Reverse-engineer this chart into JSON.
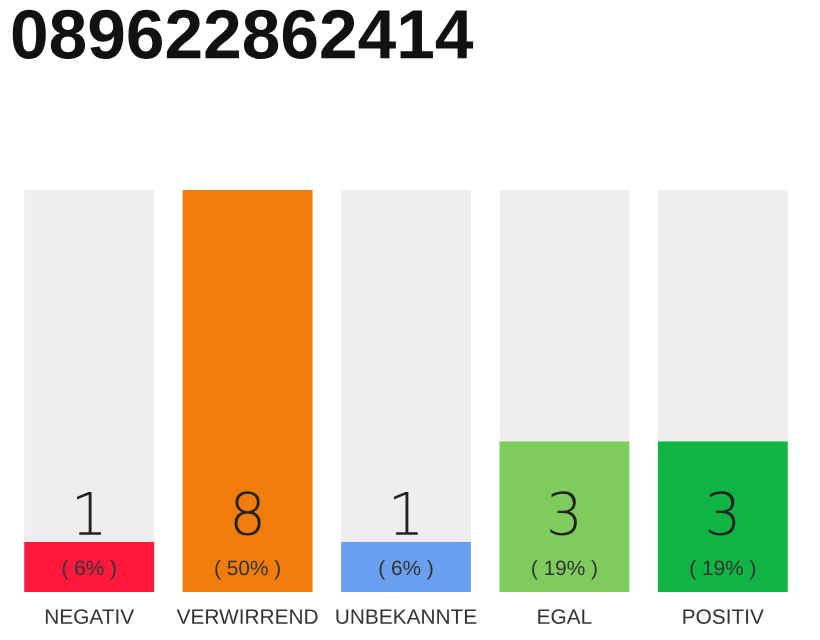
{
  "chart_data": {
    "type": "bar",
    "title": "089622862414",
    "categories": [
      "NEGATIV",
      "VERWIRREND",
      "UNBEKANNTE",
      "EGAL",
      "POSITIV"
    ],
    "stacked": true,
    "ylim": [
      0,
      8
    ],
    "tick_labels": "x",
    "grid": false,
    "legend": false,
    "series": [
      {
        "colors": [
          "#ff1a3c",
          "#f07c0a",
          "#6a9ff0",
          "#7dcc5c",
          "#10b444"
        ],
        "values": [
          1,
          8,
          1,
          3,
          3
        ],
        "value_labels": [
          "1",
          "8",
          "1",
          "3",
          "3"
        ]
      },
      {
        "color": "#eeeeee",
        "values": [
          7,
          0,
          7,
          5,
          5
        ]
      }
    ],
    "annotations": [
      {
        "text": "( 6% )",
        "x": "NEGATIV",
        "y": 0
      },
      {
        "text": "( 50% )",
        "x": "VERWIRREND",
        "y": 0
      },
      {
        "text": "( 6% )",
        "x": "UNBEKANNTE",
        "y": 0
      },
      {
        "text": "( 19% )",
        "x": "EGAL",
        "y": 0
      },
      {
        "text": "( 19% )",
        "x": "POSITIV",
        "y": 0
      }
    ]
  }
}
